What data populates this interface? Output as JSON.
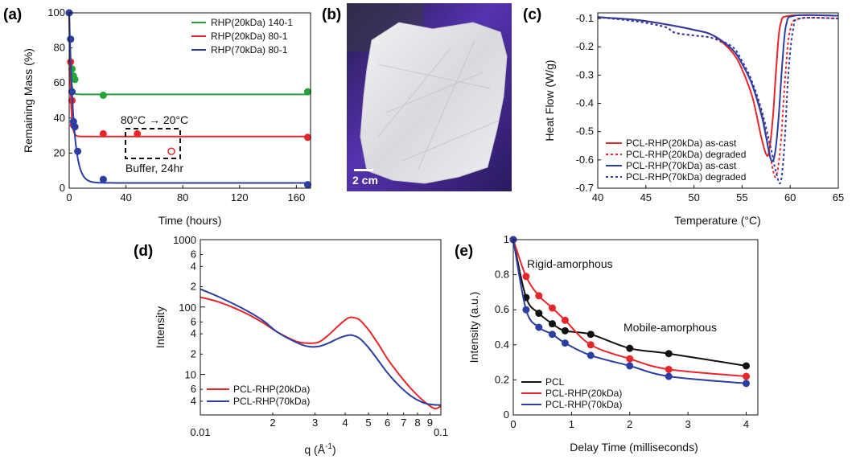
{
  "chart_data": [
    {
      "id": "a",
      "panel_label": "(a)",
      "type": "scatter",
      "xlabel": "Time (hours)",
      "ylabel": "Remaining Mass (%)",
      "xlim": [
        0,
        170
      ],
      "ylim": [
        0,
        100
      ],
      "xticks": [
        0,
        40,
        80,
        120,
        160
      ],
      "yticks": [
        0,
        20,
        40,
        60,
        80,
        100
      ],
      "legend_position": "top-right",
      "series": [
        {
          "name": "RHP(20kDa) 140-1",
          "color": "#22a33a",
          "points": [
            [
              0,
              100
            ],
            [
              1,
              85
            ],
            [
              2,
              68
            ],
            [
              3,
              64
            ],
            [
              4,
              62
            ],
            [
              24,
              53
            ],
            [
              168,
              55
            ]
          ],
          "fit_plateau": 53.5,
          "fit_rate": 1.1
        },
        {
          "name": "RHP(20kDa) 80-1",
          "color": "#e8262a",
          "points": [
            [
              0,
              100
            ],
            [
              1,
              72
            ],
            [
              2,
              50
            ],
            [
              3,
              36
            ],
            [
              4,
              35
            ],
            [
              24,
              31
            ],
            [
              48,
              31
            ],
            [
              168,
              29
            ]
          ],
          "fit_plateau": 29.5,
          "fit_rate": 1.0
        },
        {
          "name": "RHP(70kDa) 80-1",
          "color": "#2b3ea3",
          "points": [
            [
              0,
              100
            ],
            [
              1,
              85
            ],
            [
              2,
              55
            ],
            [
              3,
              38
            ],
            [
              4,
              35
            ],
            [
              6,
              21
            ],
            [
              24,
              5
            ],
            [
              168,
              2
            ]
          ],
          "fit_plateau": 3,
          "fit_rate": 0.32
        }
      ],
      "open_point": {
        "x": 72,
        "y": 21,
        "color": "#e8262a"
      },
      "annotations": {
        "top": "80°C → 20°C",
        "bottom": "Buffer, 24hr"
      }
    },
    {
      "id": "b",
      "panel_label": "(b)",
      "type": "image",
      "scale_bar": "2 cm"
    },
    {
      "id": "c",
      "panel_label": "(c)",
      "type": "line",
      "xlabel": "Temperature (°C)",
      "ylabel": "Heat Flow (W/g)",
      "xlim": [
        40,
        65
      ],
      "ylim": [
        -0.7,
        -0.08
      ],
      "xticks": [
        40,
        45,
        50,
        55,
        60,
        65
      ],
      "yticks": [
        -0.1,
        -0.2,
        -0.3,
        -0.4,
        -0.5,
        -0.6,
        -0.7
      ],
      "legend_position": "bottom-left",
      "series": [
        {
          "name": "PCL-RHP(20kDa) as-cast",
          "color": "#e8262a",
          "dash": false,
          "x": [
            40,
            44,
            47,
            50,
            52,
            54,
            55,
            56,
            56.5,
            57,
            57.5,
            57.8,
            58.2,
            58.6,
            59,
            60,
            65
          ],
          "y": [
            -0.095,
            -0.105,
            -0.12,
            -0.14,
            -0.16,
            -0.22,
            -0.28,
            -0.37,
            -0.44,
            -0.52,
            -0.58,
            -0.57,
            -0.45,
            -0.25,
            -0.12,
            -0.09,
            -0.09
          ]
        },
        {
          "name": "PCL-RHP(20kDa) degraded",
          "color": "#e8262a",
          "dash": true,
          "x": [
            40,
            44,
            47,
            48,
            50,
            52,
            54,
            55,
            56,
            57,
            57.5,
            58,
            58.5,
            59,
            59.5,
            60,
            61,
            65
          ],
          "y": [
            -0.095,
            -0.11,
            -0.13,
            -0.15,
            -0.16,
            -0.17,
            -0.21,
            -0.26,
            -0.33,
            -0.43,
            -0.51,
            -0.6,
            -0.66,
            -0.55,
            -0.3,
            -0.14,
            -0.1,
            -0.1
          ]
        },
        {
          "name": "PCL-RHP(70kDa) as-cast",
          "color": "#2b3ea3",
          "dash": false,
          "x": [
            40,
            44,
            47,
            50,
            52,
            54,
            55,
            56,
            57,
            57.5,
            58,
            58.4,
            58.8,
            59.2,
            59.6,
            60.5,
            65
          ],
          "y": [
            -0.095,
            -0.105,
            -0.12,
            -0.14,
            -0.16,
            -0.21,
            -0.26,
            -0.33,
            -0.44,
            -0.52,
            -0.6,
            -0.58,
            -0.45,
            -0.25,
            -0.12,
            -0.09,
            -0.09
          ]
        },
        {
          "name": "PCL-RHP(70kDa) degraded",
          "color": "#2b3ea3",
          "dash": true,
          "x": [
            40,
            44,
            47,
            48,
            50,
            52,
            54,
            55,
            56,
            57,
            58,
            58.5,
            59,
            59.4,
            59.8,
            60.3,
            61,
            65
          ],
          "y": [
            -0.095,
            -0.11,
            -0.13,
            -0.15,
            -0.16,
            -0.17,
            -0.2,
            -0.25,
            -0.32,
            -0.42,
            -0.56,
            -0.64,
            -0.68,
            -0.55,
            -0.3,
            -0.14,
            -0.1,
            -0.1
          ]
        }
      ]
    },
    {
      "id": "d",
      "panel_label": "(d)",
      "type": "line",
      "xlabel": "q (Å",
      "xlabel_sup": "-1",
      "xlabel_end": ")",
      "ylabel": "Intensity",
      "xscale": "log",
      "yscale": "log",
      "xlim": [
        0.01,
        0.1
      ],
      "ylim": [
        2.5,
        1000
      ],
      "xticks_major": [
        {
          "v": 0.01,
          "t": "0.01"
        },
        {
          "v": 0.1,
          "t": "0.1"
        }
      ],
      "xticks_minor": [
        {
          "v": 0.02,
          "t": "2"
        },
        {
          "v": 0.03,
          "t": "3"
        },
        {
          "v": 0.04,
          "t": "4"
        },
        {
          "v": 0.05,
          "t": "5"
        },
        {
          "v": 0.06,
          "t": "6"
        },
        {
          "v": 0.07,
          "t": "7"
        },
        {
          "v": 0.08,
          "t": "8"
        },
        {
          "v": 0.09,
          "t": "9"
        }
      ],
      "yticks_major": [
        {
          "v": 10,
          "t": "10"
        },
        {
          "v": 100,
          "t": "100"
        },
        {
          "v": 1000,
          "t": "1000"
        }
      ],
      "yticks_minor": [
        {
          "v": 4,
          "t": "4"
        },
        {
          "v": 6,
          "t": "6"
        },
        {
          "v": 20,
          "t": "2"
        },
        {
          "v": 40,
          "t": "4"
        },
        {
          "v": 60,
          "t": "6"
        },
        {
          "v": 200,
          "t": "2"
        },
        {
          "v": 400,
          "t": "4"
        },
        {
          "v": 600,
          "t": "6"
        }
      ],
      "legend_position": "bottom-left",
      "series": [
        {
          "name": "PCL-RHP(20kDa)",
          "color": "#e8262a",
          "x": [
            0.01,
            0.012,
            0.015,
            0.018,
            0.021,
            0.025,
            0.028,
            0.031,
            0.034,
            0.038,
            0.041,
            0.043,
            0.046,
            0.05,
            0.055,
            0.06,
            0.067,
            0.075,
            0.083,
            0.09,
            0.095,
            0.1
          ],
          "y": [
            140,
            118,
            85,
            60,
            42,
            31,
            29,
            30,
            38,
            55,
            68,
            70,
            64,
            46,
            28,
            17,
            10,
            6.2,
            4.3,
            3.4,
            3.1,
            3.4
          ]
        },
        {
          "name": "PCL-RHP(70kDa)",
          "color": "#2b3ea3",
          "x": [
            0.01,
            0.012,
            0.015,
            0.018,
            0.021,
            0.025,
            0.028,
            0.031,
            0.034,
            0.038,
            0.041,
            0.043,
            0.046,
            0.05,
            0.055,
            0.06,
            0.067,
            0.075,
            0.083,
            0.09,
            0.1
          ],
          "y": [
            185,
            140,
            95,
            65,
            42,
            30,
            26,
            26,
            29,
            35,
            38,
            38,
            34,
            25,
            16,
            10.5,
            6.8,
            4.8,
            3.9,
            3.6,
            3.5
          ]
        }
      ]
    },
    {
      "id": "e",
      "panel_label": "(e)",
      "type": "scatter",
      "xlabel": "Delay Time (milliseconds)",
      "ylabel": "Intensity (a.u.)",
      "xlim": [
        0,
        4.2
      ],
      "ylim": [
        0,
        1.0
      ],
      "xticks": [
        0,
        1,
        2,
        3,
        4
      ],
      "yticks": [
        0.0,
        0.2,
        0.4,
        0.6,
        0.8,
        1.0
      ],
      "legend_position": "bottom-left",
      "annotations": {
        "rigid": "Rigid-amorphous",
        "mobile": "Mobile-amorphous"
      },
      "series": [
        {
          "name": "PCL",
          "color": "#111111",
          "x": [
            0,
            0.22,
            0.44,
            0.67,
            0.89,
            1.33,
            2.0,
            2.67,
            4.0
          ],
          "y": [
            1.0,
            0.67,
            0.58,
            0.52,
            0.48,
            0.46,
            0.38,
            0.35,
            0.28
          ]
        },
        {
          "name": "PCL-RHP(20kDa)",
          "color": "#e8262a",
          "x": [
            0,
            0.22,
            0.44,
            0.67,
            0.89,
            1.33,
            2.0,
            2.67,
            4.0
          ],
          "y": [
            1.0,
            0.79,
            0.68,
            0.61,
            0.54,
            0.4,
            0.32,
            0.26,
            0.22
          ]
        },
        {
          "name": "PCL-RHP(70kDa)",
          "color": "#2b3ea3",
          "x": [
            0,
            0.22,
            0.44,
            0.67,
            0.89,
            1.33,
            2.0,
            2.67,
            4.0
          ],
          "y": [
            1.0,
            0.6,
            0.5,
            0.46,
            0.41,
            0.34,
            0.28,
            0.22,
            0.18
          ]
        }
      ]
    }
  ]
}
